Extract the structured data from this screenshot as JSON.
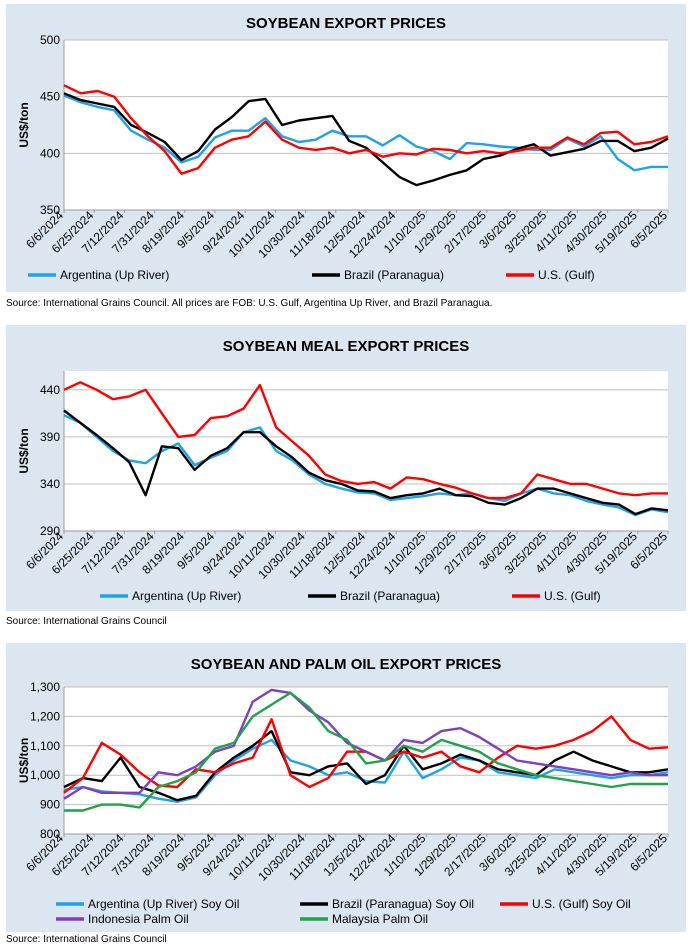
{
  "sources": [
    "Source: International Grains Council. All prices are FOB: U.S. Gulf, Argentina Up River, and Brazil Paranagua.",
    "Source: International Grains Council",
    "Source: International Grains Council"
  ],
  "colors": {
    "argentina": "#1fa2e8",
    "brazil": "#000000",
    "us": "#ff0000",
    "indonesia": "#7f3fbf",
    "malaysia": "#1fa34a",
    "grid": "#bfbfbf",
    "panel": "#dce6f1"
  },
  "chart_data": [
    {
      "type": "line",
      "title": "SOYBEAN EXPORT PRICES",
      "ylabel": "US$/ton",
      "xlabel": "",
      "ylim": [
        350,
        500
      ],
      "yticks": [
        "350",
        "400",
        "450",
        "500"
      ],
      "grid": "horizontal",
      "legend": "bottom",
      "x_tick_labels": [
        "6/6/2024",
        "6/25/2024",
        "7/12/2024",
        "7/31/2024",
        "8/19/2024",
        "9/5/2024",
        "9/24/2024",
        "10/11/2024",
        "10/30/2024",
        "11/18/2024",
        "12/5/2024",
        "12/24/2024",
        "1/10/2025",
        "1/29/2025",
        "2/17/2025",
        "3/6/2025",
        "3/25/2025",
        "4/11/2025",
        "4/30/2025",
        "5/19/2025",
        "6/5/2025"
      ],
      "series": [
        {
          "name": "Argentina (Up River)",
          "color": "argentina",
          "values": [
            451,
            445,
            441,
            438,
            420,
            412,
            405,
            392,
            397,
            414,
            420,
            420,
            431,
            415,
            410,
            412,
            420,
            415,
            415,
            407,
            416,
            406,
            402,
            395,
            409,
            408,
            406,
            405,
            403,
            403,
            413,
            406,
            415,
            395,
            385,
            388,
            388
          ]
        },
        {
          "name": "Brazil (Paranagua)",
          "color": "brazil",
          "values": [
            453,
            447,
            444,
            441,
            425,
            418,
            410,
            394,
            402,
            421,
            432,
            446,
            448,
            425,
            429,
            431,
            433,
            411,
            405,
            392,
            379,
            372,
            376,
            381,
            385,
            395,
            398,
            404,
            408,
            398,
            401,
            404,
            411,
            411,
            402,
            405,
            413
          ]
        },
        {
          "name": "U.S. (Gulf)",
          "color": "us",
          "values": [
            460,
            453,
            455,
            450,
            431,
            415,
            402,
            382,
            387,
            405,
            412,
            415,
            428,
            412,
            405,
            403,
            405,
            400,
            403,
            397,
            400,
            399,
            404,
            403,
            400,
            402,
            400,
            402,
            405,
            405,
            414,
            408,
            418,
            419,
            408,
            410,
            415
          ]
        }
      ]
    },
    {
      "type": "line",
      "title": "SOYBEAN MEAL EXPORT PRICES",
      "ylabel": "US$/ton",
      "xlabel": "",
      "ylim": [
        290,
        460
      ],
      "yticks": [
        "290",
        "340",
        "390",
        "440"
      ],
      "grid": "horizontal",
      "legend": "bottom",
      "x_tick_labels": [
        "6/6/2024",
        "6/25/2024",
        "7/12/2024",
        "7/31/2024",
        "8/19/2024",
        "9/5/2024",
        "9/24/2024",
        "10/11/2024",
        "10/30/2024",
        "11/18/2024",
        "12/5/2024",
        "12/24/2024",
        "1/10/2025",
        "1/29/2025",
        "2/17/2025",
        "3/6/2025",
        "3/25/2025",
        "4/11/2025",
        "4/30/2025",
        "5/19/2025",
        "6/5/2025"
      ],
      "series": [
        {
          "name": "Argentina (Up River)",
          "color": "argentina",
          "values": [
            413,
            405,
            390,
            375,
            365,
            362,
            375,
            383,
            360,
            368,
            375,
            395,
            400,
            375,
            365,
            350,
            340,
            335,
            331,
            330,
            323,
            325,
            327,
            330,
            328,
            330,
            325,
            322,
            330,
            335,
            330,
            328,
            322,
            318,
            315,
            307,
            313,
            310
          ]
        },
        {
          "name": "Brazil (Paranagua)",
          "color": "brazil",
          "values": [
            418,
            405,
            392,
            378,
            363,
            328,
            380,
            378,
            355,
            370,
            378,
            395,
            395,
            380,
            368,
            352,
            344,
            340,
            333,
            332,
            325,
            328,
            330,
            335,
            328,
            327,
            320,
            318,
            325,
            335,
            335,
            330,
            325,
            320,
            318,
            308,
            314,
            312
          ]
        },
        {
          "name": "U.S. (Gulf)",
          "color": "us",
          "values": [
            440,
            448,
            440,
            430,
            433,
            440,
            415,
            390,
            392,
            410,
            412,
            420,
            445,
            400,
            385,
            370,
            350,
            343,
            340,
            342,
            335,
            347,
            345,
            340,
            336,
            330,
            325,
            325,
            330,
            350,
            345,
            340,
            340,
            335,
            330,
            328,
            330,
            330
          ]
        }
      ]
    },
    {
      "type": "line",
      "title": "SOYBEAN AND PALM OIL EXPORT PRICES",
      "ylabel": "US$/ton",
      "xlabel": "",
      "ylim": [
        800,
        1300
      ],
      "yticks": [
        "800",
        "900",
        "1,000",
        "1,100",
        "1,200",
        "1,300"
      ],
      "grid": "horizontal",
      "legend": "bottom",
      "x_tick_labels": [
        "6/6/2024",
        "6/25/2024",
        "7/12/2024",
        "7/31/2024",
        "8/19/2024",
        "9/5/2024",
        "9/24/2024",
        "10/11/2024",
        "10/30/2024",
        "11/18/2024",
        "12/5/2024",
        "12/24/2024",
        "1/10/2025",
        "1/29/2025",
        "2/17/2025",
        "3/6/2025",
        "3/25/2025",
        "4/11/2025",
        "4/30/2025",
        "5/19/2025",
        "6/5/2025"
      ],
      "series": [
        {
          "name": "Argentina (Up River) Soy Oil",
          "color": "argentina",
          "values": [
            950,
            960,
            945,
            940,
            935,
            920,
            910,
            925,
            1000,
            1050,
            1090,
            1120,
            1050,
            1030,
            1000,
            1010,
            980,
            975,
            1080,
            990,
            1020,
            1060,
            1050,
            1010,
            1000,
            990,
            1020,
            1010,
            1000,
            990,
            1000,
            1000,
            1010
          ]
        },
        {
          "name": "Brazil (Paranagua) Soy Oil",
          "color": "brazil",
          "values": [
            960,
            990,
            980,
            1060,
            960,
            940,
            915,
            930,
            1010,
            1060,
            1100,
            1150,
            1010,
            1000,
            1030,
            1040,
            970,
            1000,
            1100,
            1020,
            1040,
            1070,
            1050,
            1020,
            1010,
            1000,
            1050,
            1080,
            1050,
            1030,
            1010,
            1010,
            1020
          ]
        },
        {
          "name": "U.S. (Gulf) Soy Oil",
          "color": "us",
          "values": [
            940,
            990,
            1110,
            1070,
            1010,
            965,
            960,
            1020,
            1010,
            1040,
            1060,
            1190,
            1000,
            960,
            990,
            1080,
            1080,
            1050,
            1080,
            1060,
            1080,
            1030,
            1010,
            1060,
            1100,
            1090,
            1100,
            1120,
            1150,
            1200,
            1120,
            1090,
            1095
          ]
        },
        {
          "name": "Indonesia Palm Oil",
          "color": "indonesia",
          "values": [
            920,
            960,
            940,
            940,
            940,
            1010,
            1000,
            1030,
            1080,
            1100,
            1250,
            1290,
            1280,
            1220,
            1180,
            1110,
            1080,
            1050,
            1120,
            1110,
            1150,
            1160,
            1130,
            1090,
            1050,
            1040,
            1030,
            1020,
            1010,
            1000,
            1010,
            1000,
            1000
          ]
        },
        {
          "name": "Malaysia Palm Oil",
          "color": "malaysia",
          "values": [
            880,
            880,
            900,
            900,
            890,
            960,
            980,
            1010,
            1090,
            1110,
            1200,
            1240,
            1280,
            1230,
            1150,
            1120,
            1040,
            1050,
            1100,
            1080,
            1120,
            1100,
            1080,
            1040,
            1020,
            1000,
            990,
            980,
            970,
            960,
            970,
            970,
            970
          ]
        }
      ]
    }
  ]
}
